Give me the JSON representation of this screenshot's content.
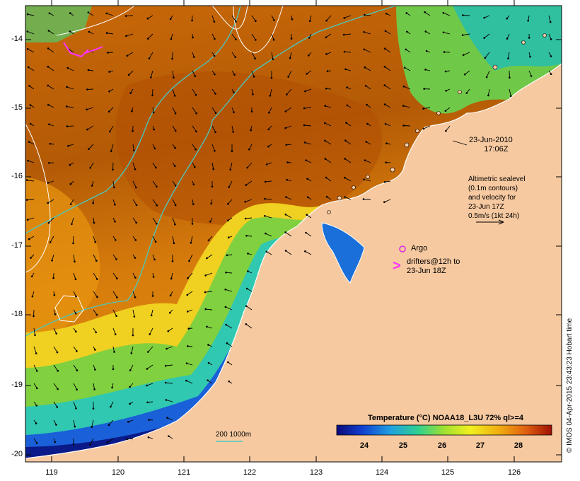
{
  "map": {
    "lat_ticks": [
      "-14",
      "-15",
      "-16",
      "-17",
      "-18",
      "-19",
      "-20"
    ],
    "lon_ticks": [
      "119",
      "120",
      "121",
      "122",
      "123",
      "124",
      "125",
      "126"
    ],
    "colors": {
      "land": "#f6c9a0",
      "sst_main": "#d6780a",
      "sst_dark": "#b85b05",
      "contour_aqua": "#49c9c0",
      "contour_white": "#ffffff",
      "argo": "#e22ee2",
      "drifter": "#ff33ff"
    }
  },
  "annotations": {
    "date_line1": "23-Jun-2010",
    "date_line2": "17:06Z",
    "alt_line1": "Altimetric sealevel",
    "alt_line2": "(0.1m contours)",
    "alt_line3": "and velocity for",
    "alt_line4": "23-Jun 17Z",
    "alt_line5": "0.5m/s (1kt 24h)",
    "argo_label": "Argo",
    "drifter_line1": "drifters@12h to",
    "drifter_line2": "23-Jun 18Z",
    "drifter_symbol": ">",
    "scale_label": "200  1000m"
  },
  "colorbar": {
    "title": "Temperature (°C) NOAA18_L3U 72% ql>=4",
    "ticks": [
      "24",
      "25",
      "26",
      "27",
      "28"
    ],
    "stops": [
      "#0a0a7a",
      "#1040d0",
      "#20a0e0",
      "#30d090",
      "#a0e030",
      "#f0f020",
      "#f0b010",
      "#e06010",
      "#a01005"
    ]
  },
  "credit": "© IMOS 04-Apr-2015 23:43:23 Hobart time"
}
